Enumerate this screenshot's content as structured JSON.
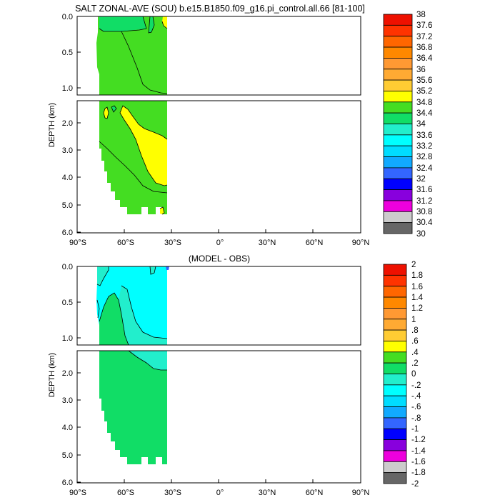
{
  "title": "SALT ZONAL-AVE (SOU) b.e15.B1850.f09_g16.pi_control.all.66 [81-100]",
  "colors": {
    "ocean_main": "#44DD22",
    "deep_green": "#11DD66",
    "yellow": "#FFFF00",
    "cyan": "#00FFFF",
    "light_cyan": "#22EECC",
    "blue": "#3366FF",
    "frame": "#000000"
  },
  "chart_data": [
    {
      "type": "contour",
      "title": "SALT ZONAL-AVE (SOU) b.e15.B1850.f09_g16.pi_control.all.66 [81-100]",
      "ylabel": "DEPTH (km)",
      "xlabel": "",
      "x_ticks": [
        "90°S",
        "60°S",
        "30°S",
        "0°",
        "30°N",
        "60°N",
        "90°N"
      ],
      "x_tick_values": [
        -90,
        -60,
        -30,
        0,
        30,
        60,
        90
      ],
      "xlim": [
        -90,
        90
      ],
      "upper_panel": {
        "ylim": [
          1.1,
          0.0
        ],
        "y_ticks": [
          "0.0",
          "0.5",
          "1.0"
        ],
        "y_tick_values": [
          0.0,
          0.5,
          1.0
        ]
      },
      "lower_panel": {
        "ylim": [
          6.0,
          1.1
        ],
        "y_ticks": [
          "2.0",
          "3.0",
          "4.0",
          "5.0",
          "6.0"
        ],
        "y_tick_values": [
          2.0,
          3.0,
          4.0,
          5.0,
          6.0
        ]
      },
      "data_lat_range": [
        -79,
        -33
      ],
      "colorbar": {
        "labels": [
          "38",
          "37.6",
          "37.2",
          "36.8",
          "36.4",
          "36",
          "35.6",
          "35.2",
          "34.8",
          "34.4",
          "34",
          "33.6",
          "33.2",
          "32.8",
          "32.4",
          "32",
          "31.6",
          "31.2",
          "30.8",
          "30.4",
          "30"
        ],
        "colors": [
          "#CC0000",
          "#EE1100",
          "#FF3300",
          "#FF6600",
          "#FF8800",
          "#FF9933",
          "#FFAA33",
          "#FFCC33",
          "#FFFF00",
          "#44DD22",
          "#11DD66",
          "#22EECC",
          "#00FFFF",
          "#00DDFF",
          "#11AAFF",
          "#3366FF",
          "#0000FF",
          "#8800DD",
          "#EE00DD",
          "#CCCCCC",
          "#666666"
        ]
      },
      "regions": [
        {
          "name": "main",
          "value_range": [
            34.4,
            34.8
          ],
          "color": "#44DD22"
        },
        {
          "name": "upper-fresh",
          "value_range": [
            34.0,
            34.4
          ],
          "color": "#11DD66"
        },
        {
          "name": "salty-tongue",
          "value_range": [
            34.8,
            35.2
          ],
          "color": "#FFFF00"
        }
      ]
    },
    {
      "type": "contour",
      "title": "(MODEL - OBS)",
      "ylabel": "DEPTH (km)",
      "xlabel": "",
      "x_ticks": [
        "90°S",
        "60°S",
        "30°S",
        "0°",
        "30°N",
        "60°N",
        "90°N"
      ],
      "x_tick_values": [
        -90,
        -60,
        -30,
        0,
        30,
        60,
        90
      ],
      "xlim": [
        -90,
        90
      ],
      "upper_panel": {
        "ylim": [
          1.1,
          0.0
        ],
        "y_ticks": [
          "0.0",
          "0.5",
          "1.0"
        ],
        "y_tick_values": [
          0.0,
          0.5,
          1.0
        ]
      },
      "lower_panel": {
        "ylim": [
          6.0,
          1.1
        ],
        "y_ticks": [
          "2.0",
          "3.0",
          "4.0",
          "5.0",
          "6.0"
        ],
        "y_tick_values": [
          2.0,
          3.0,
          4.0,
          5.0,
          6.0
        ]
      },
      "data_lat_range": [
        -79,
        -33
      ],
      "colorbar": {
        "labels": [
          "2",
          "1.8",
          "1.6",
          "1.4",
          "1.2",
          "1",
          ".8",
          ".6",
          ".4",
          ".2",
          "0",
          "-.2",
          "-.4",
          "-.6",
          "-.8",
          "-1",
          "-1.2",
          "-1.4",
          "-1.6",
          "-1.8",
          "-2"
        ],
        "colors": [
          "#CC0000",
          "#EE1100",
          "#FF3300",
          "#FF6600",
          "#FF8800",
          "#FF9933",
          "#FFAA33",
          "#FFCC33",
          "#FFFF00",
          "#44DD22",
          "#11DD66",
          "#22EECC",
          "#00FFFF",
          "#00DDFF",
          "#11AAFF",
          "#3366FF",
          "#0000FF",
          "#8800DD",
          "#EE00DD",
          "#CCCCCC",
          "#666666"
        ]
      },
      "regions": [
        {
          "name": "main",
          "value_range": [
            0.0,
            0.2
          ],
          "color": "#11DD66"
        },
        {
          "name": "negative-upper",
          "value_range": [
            -0.4,
            -0.2
          ],
          "color": "#00FFFF"
        },
        {
          "name": "weak-negative",
          "value_range": [
            -0.2,
            0.0
          ],
          "color": "#22EECC"
        }
      ]
    }
  ]
}
